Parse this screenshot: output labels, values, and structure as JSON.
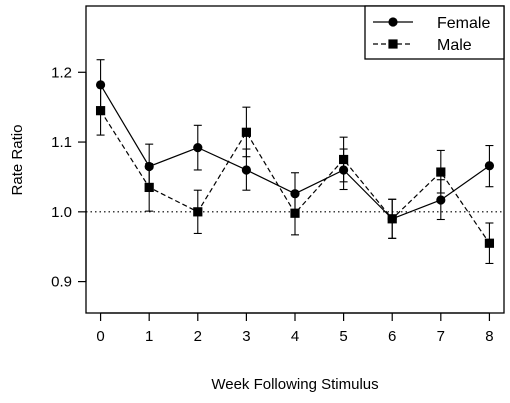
{
  "chart_data": {
    "type": "line",
    "xlabel": "Week Following Stimulus",
    "ylabel": "Rate Ratio",
    "x": [
      0,
      1,
      2,
      3,
      4,
      5,
      6,
      7,
      8
    ],
    "xlim": [
      -0.3,
      8.3
    ],
    "ylim": [
      0.855,
      1.295
    ],
    "xticks": [
      0,
      1,
      2,
      3,
      4,
      5,
      6,
      7,
      8
    ],
    "yticks": [
      0.9,
      1.0,
      1.1,
      1.2
    ],
    "ytick_labels": [
      "0.9",
      "1.0",
      "1.1",
      "1.2"
    ],
    "reference_line": {
      "y": 1.0,
      "style": "dotted"
    },
    "legend_position": "top-right",
    "series": [
      {
        "name": "Female",
        "marker": "circle",
        "line_style": "solid",
        "values": [
          1.182,
          1.065,
          1.092,
          1.06,
          1.026,
          1.06,
          0.99,
          1.017,
          1.066
        ],
        "lower": [
          1.146,
          1.034,
          1.06,
          1.031,
          0.997,
          1.032,
          0.962,
          0.989,
          1.036
        ],
        "upper": [
          1.218,
          1.097,
          1.124,
          1.09,
          1.056,
          1.09,
          1.018,
          1.046,
          1.095
        ]
      },
      {
        "name": "Male",
        "marker": "square",
        "line_style": "dashed",
        "values": [
          1.145,
          1.035,
          1.0,
          1.114,
          0.998,
          1.075,
          0.99,
          1.057,
          0.955
        ],
        "lower": [
          1.11,
          1.001,
          0.969,
          1.079,
          0.967,
          1.043,
          0.962,
          1.027,
          0.926
        ],
        "upper": [
          1.18,
          1.069,
          1.031,
          1.15,
          1.029,
          1.107,
          1.018,
          1.088,
          0.984
        ]
      }
    ]
  }
}
